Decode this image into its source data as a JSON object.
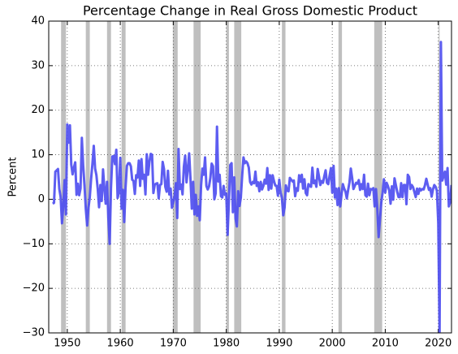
{
  "chart_data": {
    "type": "line",
    "title": "Percentage Change in Real Gross Domestic Product",
    "y_label": "Percent",
    "series": [
      {
        "color": "#4b4bf0",
        "x": [
          1947.25,
          1947.5,
          1947.75,
          1948,
          1948.25,
          1948.5,
          1948.75,
          1949,
          1949.25,
          1949.5,
          1949.75,
          1950,
          1950.25,
          1950.5,
          1950.75,
          1951,
          1951.25,
          1951.5,
          1951.75,
          1952,
          1952.25,
          1952.5,
          1952.75,
          1953,
          1953.25,
          1953.5,
          1953.75,
          1954,
          1954.25,
          1954.5,
          1954.75,
          1955,
          1955.25,
          1955.5,
          1955.75,
          1956,
          1956.25,
          1956.5,
          1956.75,
          1957,
          1957.25,
          1957.5,
          1957.75,
          1958,
          1958.25,
          1958.5,
          1958.75,
          1959,
          1959.25,
          1959.5,
          1959.75,
          1960,
          1960.25,
          1960.5,
          1960.75,
          1961,
          1961.25,
          1961.5,
          1961.75,
          1962,
          1962.25,
          1962.5,
          1962.75,
          1963,
          1963.25,
          1963.5,
          1963.75,
          1964,
          1964.25,
          1964.5,
          1964.75,
          1965,
          1965.25,
          1965.5,
          1965.75,
          1966,
          1966.25,
          1966.5,
          1966.75,
          1967,
          1967.25,
          1967.5,
          1967.75,
          1968,
          1968.25,
          1968.5,
          1968.75,
          1969,
          1969.25,
          1969.5,
          1969.75,
          1970,
          1970.25,
          1970.5,
          1970.75,
          1971,
          1971.25,
          1971.5,
          1971.75,
          1972,
          1972.25,
          1972.5,
          1972.75,
          1973,
          1973.25,
          1973.5,
          1973.75,
          1974,
          1974.25,
          1974.5,
          1974.75,
          1975,
          1975.25,
          1975.5,
          1975.75,
          1976,
          1976.25,
          1976.5,
          1976.75,
          1977,
          1977.25,
          1977.5,
          1977.75,
          1978,
          1978.25,
          1978.5,
          1978.75,
          1979,
          1979.25,
          1979.5,
          1979.75,
          1980,
          1980.25,
          1980.5,
          1980.75,
          1981,
          1981.25,
          1981.5,
          1981.75,
          1982,
          1982.25,
          1982.5,
          1982.75,
          1983,
          1983.25,
          1983.5,
          1983.75,
          1984,
          1984.25,
          1984.5,
          1984.75,
          1985,
          1985.25,
          1985.5,
          1985.75,
          1986,
          1986.25,
          1986.5,
          1986.75,
          1987,
          1987.25,
          1987.5,
          1987.75,
          1988,
          1988.25,
          1988.5,
          1988.75,
          1989,
          1989.25,
          1989.5,
          1989.75,
          1990,
          1990.25,
          1990.5,
          1990.75,
          1991,
          1991.25,
          1991.5,
          1991.75,
          1992,
          1992.25,
          1992.5,
          1992.75,
          1993,
          1993.25,
          1993.5,
          1993.75,
          1994,
          1994.25,
          1994.5,
          1994.75,
          1995,
          1995.25,
          1995.5,
          1995.75,
          1996,
          1996.25,
          1996.5,
          1996.75,
          1997,
          1997.25,
          1997.5,
          1997.75,
          1998,
          1998.25,
          1998.5,
          1998.75,
          1999,
          1999.25,
          1999.5,
          1999.75,
          2000,
          2000.25,
          2000.5,
          2000.75,
          2001,
          2001.25,
          2001.5,
          2001.75,
          2002,
          2002.25,
          2002.5,
          2002.75,
          2003,
          2003.25,
          2003.5,
          2003.75,
          2004,
          2004.25,
          2004.5,
          2004.75,
          2005,
          2005.25,
          2005.5,
          2005.75,
          2006,
          2006.25,
          2006.5,
          2006.75,
          2007,
          2007.25,
          2007.5,
          2007.75,
          2008,
          2008.25,
          2008.5,
          2008.75,
          2009,
          2009.25,
          2009.5,
          2009.75,
          2010,
          2010.25,
          2010.5,
          2010.75,
          2011,
          2011.25,
          2011.5,
          2011.75,
          2012,
          2012.25,
          2012.5,
          2012.75,
          2013,
          2013.25,
          2013.5,
          2013.75,
          2014,
          2014.25,
          2014.5,
          2014.75,
          2015,
          2015.25,
          2015.5,
          2015.75,
          2016,
          2016.25,
          2016.5,
          2016.75,
          2017,
          2017.25,
          2017.5,
          2017.75,
          2018,
          2018.25,
          2018.5,
          2018.75,
          2019,
          2019.25,
          2019.5,
          2019.75,
          2020,
          2020.25,
          2020.5,
          2020.75,
          2021,
          2021.25,
          2021.5,
          2021.75,
          2022,
          2022.25,
          2022.5
        ],
        "values": [
          -1,
          -0.8,
          6.2,
          6.5,
          6.8,
          2.3,
          0.5,
          -5.4,
          -1.4,
          4.3,
          -3.4,
          16.8,
          12.7,
          16.6,
          7.8,
          5.6,
          7.1,
          8.3,
          1,
          3.5,
          0.9,
          2.4,
          13.8,
          7.6,
          3.1,
          -2.2,
          -5.9,
          -1.9,
          0.5,
          4.6,
          8,
          12,
          6.9,
          5.4,
          2.3,
          -1.8,
          3.2,
          -0.4,
          6.7,
          2.5,
          -1,
          3.9,
          -4.1,
          -10,
          2.6,
          9.6,
          9.7,
          7.9,
          11.1,
          0.3,
          1.6,
          9.3,
          -2.1,
          2.1,
          -5.1,
          2.7,
          7.5,
          8.1,
          8.1,
          7.4,
          4.4,
          4.1,
          1.2,
          5.4,
          4.9,
          8.7,
          3,
          9,
          4.6,
          5.5,
          1.1,
          10.1,
          5.5,
          8.4,
          10.2,
          10,
          1.4,
          3.3,
          3.5,
          3.6,
          0.2,
          3.2,
          3.4,
          8.4,
          6.8,
          2.8,
          1.7,
          6.4,
          1.1,
          2.4,
          -1.9,
          -0.6,
          0.6,
          3.6,
          -4.2,
          11.3,
          2.3,
          3.3,
          1.1,
          7.3,
          9.8,
          3.8,
          6.9,
          10.3,
          4.5,
          -2.1,
          3.9,
          -3.4,
          1,
          -3.7,
          -1.6,
          -4.7,
          3.1,
          6.9,
          5.5,
          9.4,
          3,
          2.2,
          2.9,
          4.8,
          8,
          7.4,
          0,
          1.3,
          16.3,
          4,
          5.5,
          0.7,
          0.4,
          3,
          1,
          1.3,
          -8,
          -0.5,
          7.7,
          8.1,
          -2.9,
          4.9,
          -4.3,
          -6.1,
          1.8,
          -1.5,
          0.4,
          5.3,
          9.4,
          8.1,
          8.5,
          8.1,
          7.1,
          3.9,
          3.3,
          3.9,
          3.6,
          6.2,
          3,
          3.8,
          1.8,
          3.9,
          2.2,
          3,
          4.4,
          3.5,
          7,
          2.1,
          5.4,
          2.4,
          5.4,
          4.1,
          3.1,
          3,
          0.8,
          4.4,
          1.5,
          0.3,
          -3.6,
          -1.9,
          3.1,
          1.9,
          1.8,
          4.8,
          4.4,
          4,
          4.2,
          0.7,
          2.5,
          1.9,
          5.4,
          3.9,
          5.5,
          2.4,
          4.5,
          1.4,
          0.9,
          3.4,
          3,
          2.8,
          7.1,
          3.6,
          4.2,
          2.8,
          6.8,
          5.1,
          3.2,
          4.1,
          3.7,
          5.2,
          6.5,
          3.7,
          3.4,
          5.3,
          7,
          1.5,
          7.5,
          0.4,
          2.4,
          -1.3,
          2.5,
          -1.6,
          1.1,
          3.4,
          2.4,
          1.7,
          0.2,
          2.1,
          3.8,
          6.9,
          4.8,
          2.3,
          3,
          3.7,
          3.5,
          4.3,
          2.1,
          3.4,
          2.3,
          5.5,
          0.9,
          0.6,
          3.5,
          0.9,
          2.3,
          2.2,
          2.5,
          -1.6,
          2.3,
          -2.1,
          -8.5,
          -4.6,
          -0.7,
          1.5,
          4.5,
          1.5,
          3.7,
          3,
          2,
          -1,
          2.9,
          -0.1,
          4.7,
          3.2,
          1.7,
          0.5,
          0.5,
          3.6,
          0.5,
          3.2,
          3.2,
          -1.1,
          5.5,
          5,
          2.3,
          3.2,
          2.7,
          1.6,
          0.5,
          2.4,
          1.2,
          2.4,
          2,
          2.3,
          2.2,
          3.2,
          4.6,
          3.3,
          2.1,
          2.5,
          0.6,
          2.2,
          3.2,
          2.8,
          1.9,
          -5.3,
          -29.9,
          35.3,
          4.2,
          5.2,
          6.2,
          3.3,
          7,
          -1.6,
          -0.6,
          3.2
        ]
      }
    ],
    "recessions": [
      [
        1948.83,
        1949.75
      ],
      [
        1953.5,
        1954.25
      ],
      [
        1957.5,
        1958.25
      ],
      [
        1960.25,
        1961.0
      ],
      [
        1969.92,
        1970.83
      ],
      [
        1973.83,
        1975.17
      ],
      [
        1980.0,
        1980.5
      ],
      [
        1981.5,
        1982.83
      ],
      [
        1990.5,
        1991.17
      ],
      [
        2001.17,
        2001.83
      ],
      [
        2007.92,
        2009.42
      ],
      [
        2020.08,
        2020.25
      ]
    ],
    "recession_color": "#bfbfbf",
    "xlim": [
      1946.5,
      2022.5
    ],
    "xticks": [
      1950,
      1960,
      1970,
      1980,
      1990,
      2000,
      2010,
      2020
    ],
    "ylim": [
      -30,
      40
    ],
    "yticks": [
      {
        "value": -30,
        "label": "−30"
      },
      {
        "value": -20,
        "label": "−20"
      },
      {
        "value": -10,
        "label": "−10"
      },
      0,
      10,
      20,
      30,
      40
    ],
    "grid": true
  }
}
